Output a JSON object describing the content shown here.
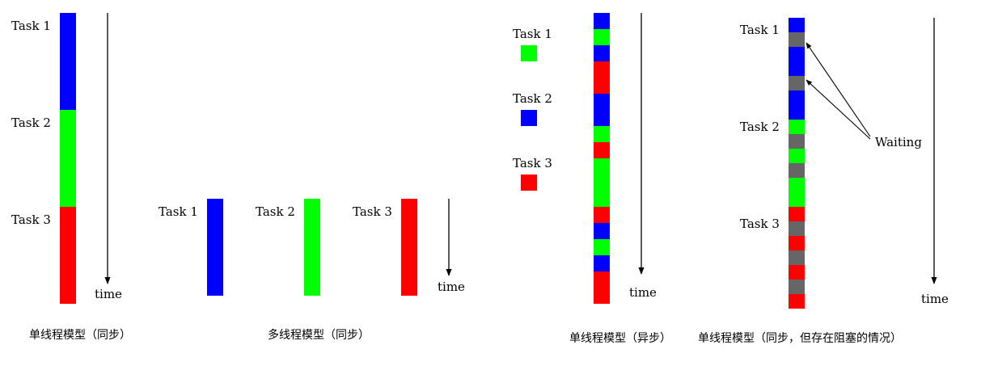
{
  "colors": {
    "blue": "#0000ff",
    "green": "#00ff00",
    "red": "#ff0000",
    "gray": "#666666",
    "line": "#000000"
  },
  "panels": [
    {
      "caption": "单线程模型（同步）",
      "task_labels": [
        "Task 1",
        "Task 2",
        "Task 3"
      ],
      "time_label": "time",
      "segments": [
        "blue",
        "green",
        "red"
      ]
    },
    {
      "caption": "多线程模型（同步）",
      "task_labels": [
        "Task 1",
        "Task 2",
        "Task 3"
      ],
      "time_label": "time",
      "segments": [
        "blue",
        "green",
        "red"
      ]
    },
    {
      "caption": "单线程模型（异步）",
      "task_labels": [
        "Task 1",
        "Task 2",
        "Task 3"
      ],
      "legend_colors": [
        "green",
        "blue",
        "red"
      ],
      "time_label": "time",
      "segments": [
        "blue",
        "green",
        "blue",
        "red",
        "red",
        "blue",
        "blue",
        "green",
        "red",
        "green",
        "green",
        "green",
        "red",
        "blue",
        "green",
        "blue",
        "red",
        "red"
      ]
    },
    {
      "caption": "单线程模型（同步，但存在阻塞的情况）",
      "task_labels": [
        "Task 1",
        "Task 2",
        "Task 3"
      ],
      "time_label": "time",
      "callout": "Waiting",
      "segments": [
        "blue",
        "gray",
        "blue",
        "blue",
        "gray",
        "blue",
        "blue",
        "green",
        "gray",
        "green",
        "gray",
        "green",
        "green",
        "red",
        "gray",
        "red",
        "gray",
        "red",
        "gray",
        "red"
      ]
    }
  ]
}
